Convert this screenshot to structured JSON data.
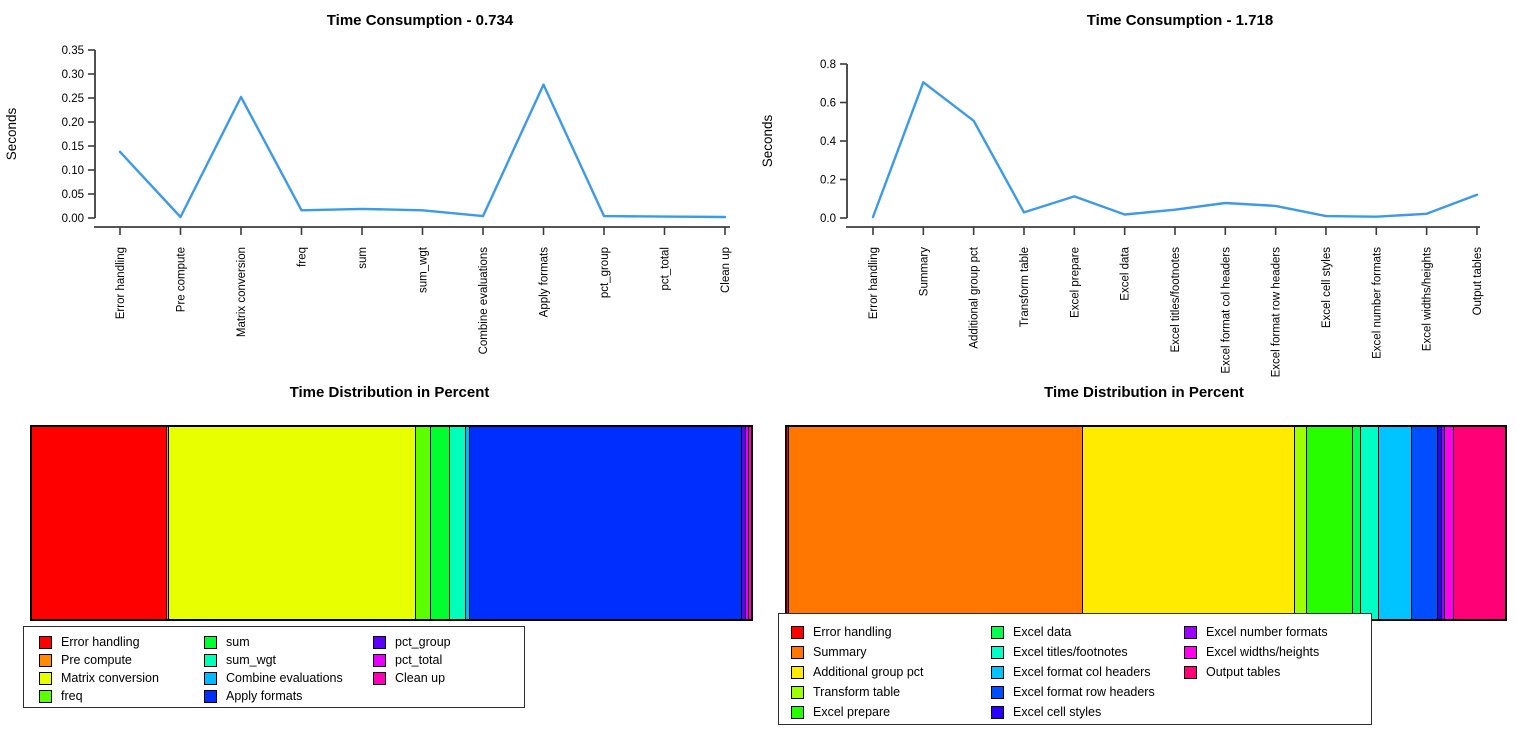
{
  "page": {
    "background_color": "#FFFFFF",
    "text_color": "#000000"
  },
  "chart_data": [
    {
      "type": "line",
      "title": "Time Consumption - 0.734",
      "xlabel": "",
      "ylabel": "Seconds",
      "categories": [
        "Error handling",
        "Pre compute",
        "Matrix conversion",
        "freq",
        "sum",
        "sum_wgt",
        "Combine evaluations",
        "Apply formats",
        "pct_group",
        "pct_total",
        "Clean up"
      ],
      "values": [
        0.138,
        0.002,
        0.252,
        0.016,
        0.019,
        0.016,
        0.004,
        0.278,
        0.004,
        0.003,
        0.002
      ],
      "ylim": [
        0,
        0.35
      ],
      "ytick_values": [
        0,
        0.05,
        0.1,
        0.15,
        0.2,
        0.25,
        0.3,
        0.35
      ],
      "ytick_labels": [
        "0.00",
        "0.05",
        "0.10",
        "0.15",
        "0.20",
        "0.25",
        "0.30",
        "0.35"
      ],
      "line_color": "#3D9AE8",
      "axis_color": "#3C3C3C",
      "grid": false,
      "legend_position": "none",
      "x_labels_rotated": true
    },
    {
      "type": "line",
      "title": "Time Consumption - 1.718",
      "xlabel": "",
      "ylabel": "Seconds",
      "categories": [
        "Error handling",
        "Summary",
        "Additional group pct",
        "Transform table",
        "Excel prepare",
        "Excel data",
        "Excel titles/footnotes",
        "Excel format col headers",
        "Excel format row headers",
        "Excel cell styles",
        "Excel number formats",
        "Excel widths/heights",
        "Output tables"
      ],
      "values": [
        0.005,
        0.705,
        0.505,
        0.029,
        0.112,
        0.018,
        0.043,
        0.078,
        0.063,
        0.01,
        0.007,
        0.022,
        0.121
      ],
      "ylim": [
        0,
        0.8
      ],
      "ytick_values": [
        0,
        0.2,
        0.4,
        0.6,
        0.8
      ],
      "ytick_labels": [
        "0.0",
        "0.2",
        "0.4",
        "0.6",
        "0.8"
      ],
      "line_color": "#3D9AE8",
      "axis_color": "#3C3C3C",
      "grid": false,
      "legend_position": "none",
      "x_labels_rotated": true
    },
    {
      "type": "stacked-bar",
      "title": "Time Distribution in Percent",
      "categories": [
        "Error handling",
        "Pre compute",
        "Matrix conversion",
        "freq",
        "sum",
        "sum_wgt",
        "Combine evaluations",
        "Apply formats",
        "pct_group",
        "pct_total",
        "Clean up"
      ],
      "values_pct": [
        18.8,
        0.27,
        34.3,
        2.18,
        2.59,
        2.18,
        0.54,
        37.9,
        0.54,
        0.41,
        0.27
      ],
      "colors": [
        "#FF0000",
        "#FF8B00",
        "#E8FF00",
        "#5DFF00",
        "#00FF2E",
        "#00FFB9",
        "#00B9FF",
        "#002EFF",
        "#5D00FF",
        "#E800FF",
        "#FF00B9"
      ],
      "legend_position": "below",
      "legend_columns": 3
    },
    {
      "type": "stacked-bar",
      "title": "Time Distribution in Percent",
      "categories": [
        "Error handling",
        "Summary",
        "Additional group pct",
        "Transform table",
        "Excel prepare",
        "Excel data",
        "Excel titles/footnotes",
        "Excel format col headers",
        "Excel format row headers",
        "Excel cell styles",
        "Excel number formats",
        "Excel widths/heights",
        "Output tables"
      ],
      "values_pct": [
        0.29,
        41.0,
        29.4,
        1.69,
        6.52,
        1.05,
        2.5,
        4.54,
        3.67,
        0.58,
        0.41,
        1.28,
        7.04
      ],
      "colors": [
        "#FF0000",
        "#FF7600",
        "#FFEB00",
        "#9DFF00",
        "#27FF00",
        "#00FF4E",
        "#00FFC4",
        "#00C4FF",
        "#004EFF",
        "#2700FF",
        "#9D00FF",
        "#FF00EB",
        "#FF0076"
      ],
      "legend_position": "below",
      "legend_columns": 3
    }
  ]
}
